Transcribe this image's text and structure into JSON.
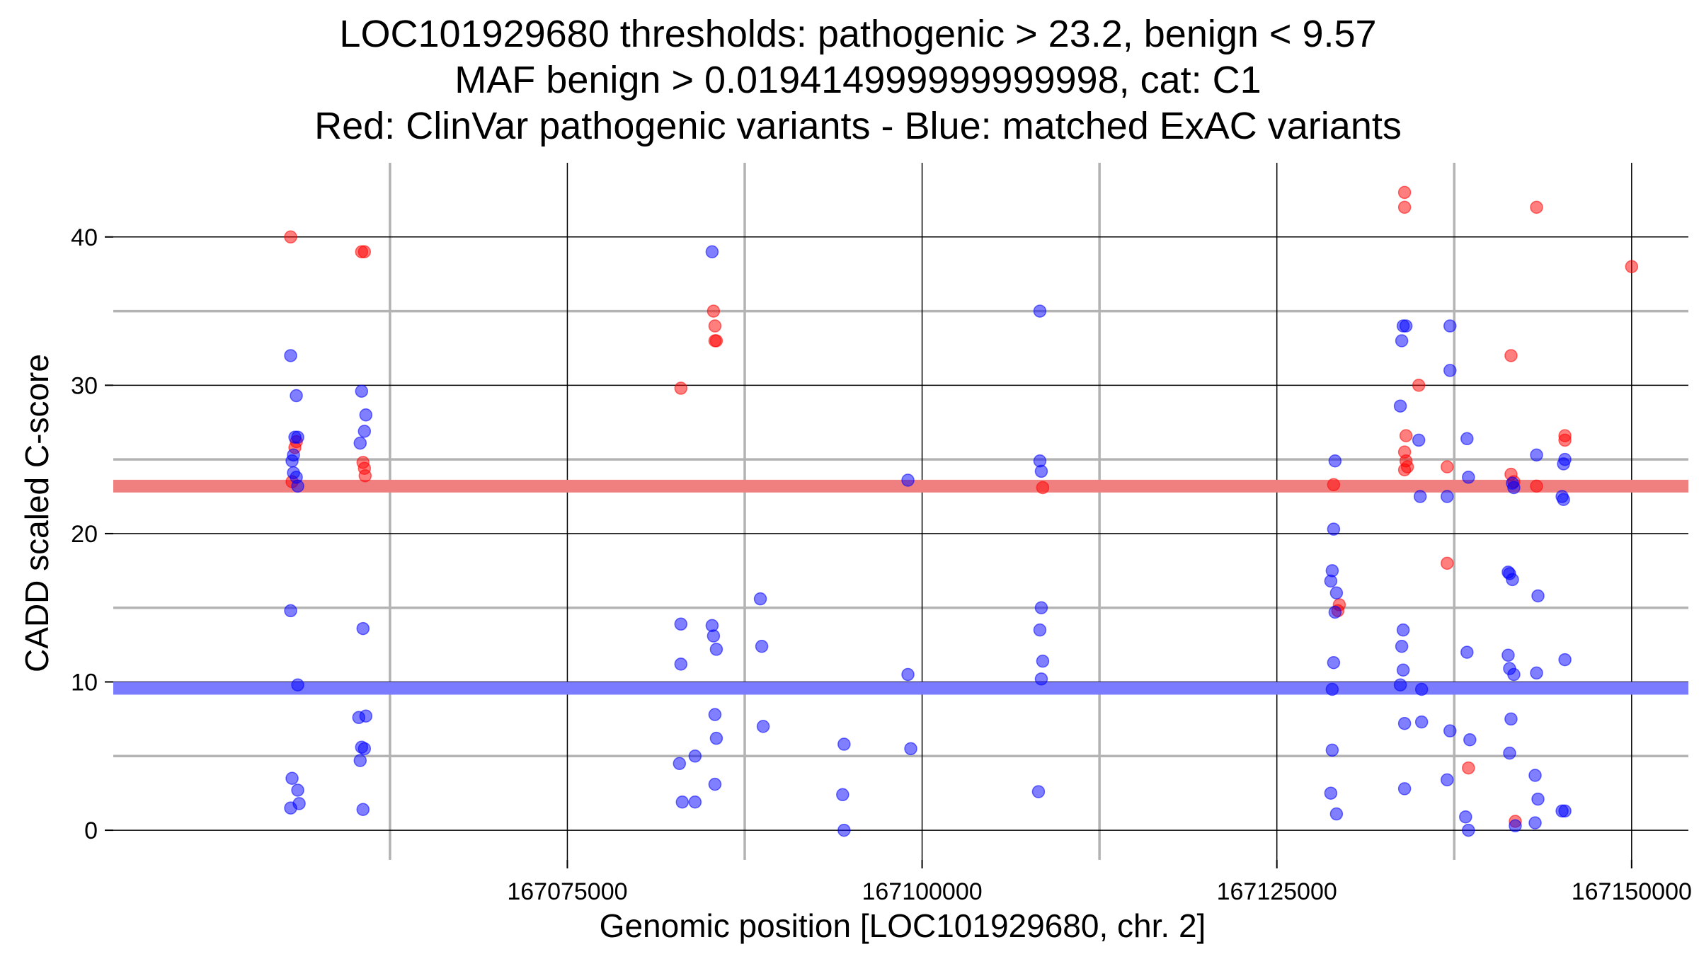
{
  "chart_data": {
    "type": "scatter",
    "title_lines": [
      "LOC101929680 thresholds: pathogenic > 23.2, benign < 9.57",
      "MAF benign > 0.019414999999999998, cat: C1",
      "Red: ClinVar pathogenic variants - Blue: matched ExAC variants"
    ],
    "xlabel": "Genomic position [LOC101929680, chr. 2]",
    "ylabel": "CADD scaled C-score",
    "xlim": [
      167043000,
      167154000
    ],
    "ylim": [
      -2,
      45
    ],
    "x_ticks": [
      167075000,
      167100000,
      167125000,
      167150000
    ],
    "x_tick_labels": [
      "167075000",
      "167100000",
      "167125000",
      "167150000"
    ],
    "x_minor_gridlines": [
      167062500,
      167087500,
      167112500,
      167137500
    ],
    "y_ticks": [
      0,
      10,
      20,
      30,
      40
    ],
    "y_tick_labels": [
      "0",
      "10",
      "20",
      "30",
      "40"
    ],
    "y_minor_gridlines": [
      5,
      15,
      25,
      35
    ],
    "grid": true,
    "thresholds": [
      {
        "label": "pathogenic",
        "value": 23.2,
        "color": "#f08080"
      },
      {
        "label": "benign",
        "value": 9.57,
        "color": "#7b7bff"
      }
    ],
    "colors": {
      "pathogenic": "#ff0000",
      "benign": "#0000ff",
      "major_grid": "#000000",
      "minor_grid": "#b3b3b3"
    },
    "series": [
      {
        "color": "#ff0000",
        "points": [
          [
            167055500,
            40
          ],
          [
            167055600,
            23.5
          ],
          [
            167055800,
            25.8
          ],
          [
            167055900,
            26.2
          ],
          [
            167060500,
            39
          ],
          [
            167060700,
            39
          ],
          [
            167060600,
            24.8
          ],
          [
            167060700,
            24.4
          ],
          [
            167060750,
            23.9
          ],
          [
            167083000,
            29.8
          ],
          [
            167085300,
            35
          ],
          [
            167085400,
            34
          ],
          [
            167085400,
            33
          ],
          [
            167085500,
            33
          ],
          [
            167108500,
            23.1
          ],
          [
            167129000,
            23.3
          ],
          [
            167129300,
            14.8
          ],
          [
            167129400,
            15.2
          ],
          [
            167134000,
            43
          ],
          [
            167134000,
            42
          ],
          [
            167134100,
            26.6
          ],
          [
            167134000,
            25.5
          ],
          [
            167134100,
            24.9
          ],
          [
            167134000,
            24.3
          ],
          [
            167134200,
            24.5
          ],
          [
            167135000,
            30
          ],
          [
            167137000,
            24.5
          ],
          [
            167137000,
            18
          ],
          [
            167138500,
            4.2
          ],
          [
            167141500,
            32
          ],
          [
            167141500,
            24
          ],
          [
            167141700,
            23.5
          ],
          [
            167141800,
            0.6
          ],
          [
            167143300,
            42
          ],
          [
            167143300,
            23.2
          ],
          [
            167145300,
            26.6
          ],
          [
            167145300,
            26.3
          ],
          [
            167150000,
            38
          ]
        ]
      },
      {
        "color": "#0000ff",
        "points": [
          [
            167055500,
            32
          ],
          [
            167055500,
            14.8
          ],
          [
            167055600,
            24.9
          ],
          [
            167055700,
            25.3
          ],
          [
            167055800,
            26.5
          ],
          [
            167056000,
            26.5
          ],
          [
            167055900,
            29.3
          ],
          [
            167055700,
            24.1
          ],
          [
            167055900,
            23.8
          ],
          [
            167056000,
            23.2
          ],
          [
            167056000,
            9.8
          ],
          [
            167055600,
            3.5
          ],
          [
            167056000,
            2.7
          ],
          [
            167055500,
            1.5
          ],
          [
            167056100,
            1.8
          ],
          [
            167060400,
            26.1
          ],
          [
            167060500,
            29.6
          ],
          [
            167060800,
            28
          ],
          [
            167060700,
            26.9
          ],
          [
            167060600,
            13.6
          ],
          [
            167060300,
            7.6
          ],
          [
            167060800,
            7.7
          ],
          [
            167060500,
            5.6
          ],
          [
            167060700,
            5.5
          ],
          [
            167060400,
            4.7
          ],
          [
            167060600,
            1.4
          ],
          [
            167083000,
            13.9
          ],
          [
            167083000,
            11.2
          ],
          [
            167082900,
            4.5
          ],
          [
            167083100,
            1.9
          ],
          [
            167084000,
            1.9
          ],
          [
            167084000,
            5
          ],
          [
            167085200,
            39
          ],
          [
            167085200,
            13.8
          ],
          [
            167085300,
            13.1
          ],
          [
            167085500,
            12.2
          ],
          [
            167085400,
            7.8
          ],
          [
            167085500,
            6.2
          ],
          [
            167085400,
            3.1
          ],
          [
            167088600,
            15.6
          ],
          [
            167088700,
            12.4
          ],
          [
            167088800,
            7
          ],
          [
            167094500,
            5.8
          ],
          [
            167094400,
            2.4
          ],
          [
            167094500,
            0
          ],
          [
            167099000,
            23.6
          ],
          [
            167099000,
            10.5
          ],
          [
            167099200,
            5.5
          ],
          [
            167108300,
            35
          ],
          [
            167108300,
            24.9
          ],
          [
            167108400,
            24.2
          ],
          [
            167108400,
            15
          ],
          [
            167108300,
            13.5
          ],
          [
            167108500,
            11.4
          ],
          [
            167108400,
            10.2
          ],
          [
            167108200,
            2.6
          ],
          [
            167129100,
            24.9
          ],
          [
            167129000,
            20.3
          ],
          [
            167128900,
            17.5
          ],
          [
            167128800,
            16.8
          ],
          [
            167129200,
            16
          ],
          [
            167129100,
            14.7
          ],
          [
            167129000,
            11.3
          ],
          [
            167128900,
            9.5
          ],
          [
            167128900,
            5.4
          ],
          [
            167128800,
            2.5
          ],
          [
            167129200,
            1.1
          ],
          [
            167133700,
            28.6
          ],
          [
            167133900,
            34
          ],
          [
            167134100,
            34
          ],
          [
            167133800,
            33
          ],
          [
            167135000,
            26.3
          ],
          [
            167135100,
            22.5
          ],
          [
            167133900,
            13.5
          ],
          [
            167133800,
            12.4
          ],
          [
            167133900,
            10.8
          ],
          [
            167133700,
            9.8
          ],
          [
            167134000,
            7.2
          ],
          [
            167135200,
            7.3
          ],
          [
            167135200,
            9.5
          ],
          [
            167134000,
            2.8
          ],
          [
            167137200,
            34
          ],
          [
            167137200,
            31
          ],
          [
            167137000,
            22.5
          ],
          [
            167137200,
            6.7
          ],
          [
            167137000,
            3.4
          ],
          [
            167138400,
            26.4
          ],
          [
            167138500,
            23.8
          ],
          [
            167138400,
            12
          ],
          [
            167138600,
            6.1
          ],
          [
            167138300,
            0.9
          ],
          [
            167138500,
            0
          ],
          [
            167141300,
            17.4
          ],
          [
            167141400,
            17.3
          ],
          [
            167141600,
            16.9
          ],
          [
            167141300,
            11.8
          ],
          [
            167141400,
            10.9
          ],
          [
            167141700,
            10.5
          ],
          [
            167141500,
            7.5
          ],
          [
            167141400,
            5.2
          ],
          [
            167141800,
            0.3
          ],
          [
            167141600,
            23.4
          ],
          [
            167141700,
            23.1
          ],
          [
            167143300,
            25.3
          ],
          [
            167143400,
            15.8
          ],
          [
            167143300,
            10.6
          ],
          [
            167143200,
            3.7
          ],
          [
            167143400,
            2.1
          ],
          [
            167143200,
            0.5
          ],
          [
            167145300,
            25
          ],
          [
            167145200,
            24.7
          ],
          [
            167145100,
            22.5
          ],
          [
            167145200,
            22.3
          ],
          [
            167145300,
            11.5
          ],
          [
            167145100,
            1.3
          ],
          [
            167145300,
            1.3
          ]
        ]
      }
    ]
  }
}
